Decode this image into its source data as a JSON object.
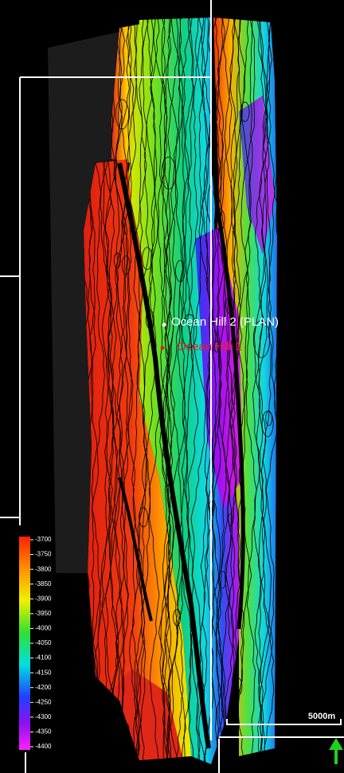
{
  "wells": [
    {
      "label": "Ocean Hill 2 (PLAN)"
    },
    {
      "label": "Ocean Hill 1"
    }
  ],
  "legend": {
    "labels": [
      "-3700",
      "-3750",
      "-3800",
      "-3850",
      "-3900",
      "-3950",
      "-4000",
      "-4050",
      "-4100",
      "-4150",
      "-4200",
      "-4250",
      "-4300",
      "-4350",
      "-4400"
    ]
  },
  "scale_bar": {
    "label": "5000m"
  }
}
